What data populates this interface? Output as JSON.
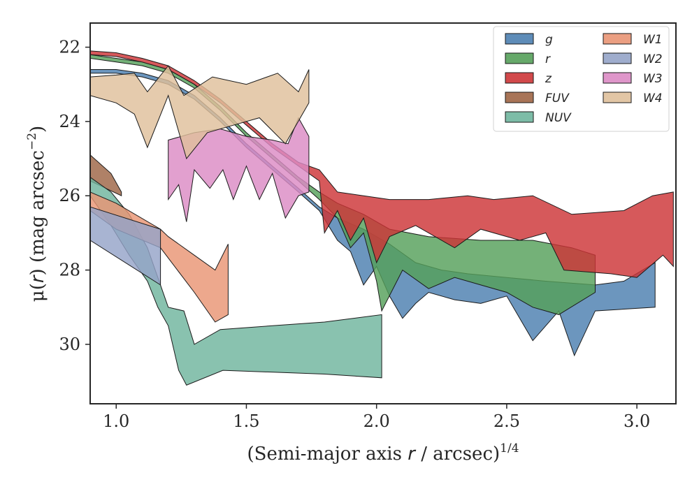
{
  "chart_data": {
    "type": "area",
    "title": "",
    "xlabel": "(Semi-major axis r / arcsec)^1/4",
    "xlabel_parts": [
      "(Semi-major axis ",
      "r",
      " / arcsec)",
      "1/4"
    ],
    "ylabel": "μ(r) (mag arcsec^−2)",
    "ylabel_parts": [
      "μ(",
      "r",
      ") (mag arcsec",
      "−2",
      ")"
    ],
    "xlim": [
      0.9,
      3.15
    ],
    "ylim": [
      31.6,
      21.35
    ],
    "y_inverted": true,
    "xticks": [
      1.0,
      1.5,
      2.0,
      2.5,
      3.0
    ],
    "xtick_labels": [
      "1.0",
      "1.5",
      "2.0",
      "2.5",
      "3.0"
    ],
    "yticks": [
      22,
      24,
      26,
      28,
      30
    ],
    "ytick_labels": [
      "22",
      "24",
      "26",
      "28",
      "30"
    ],
    "grid": false,
    "legend_position": "top-right",
    "legend_columns": 2,
    "series": [
      {
        "name": "g",
        "color": "#4c7fb0",
        "upper": [
          [
            0.9,
            22.6
          ],
          [
            1.0,
            22.6
          ],
          [
            1.1,
            22.7
          ],
          [
            1.2,
            22.9
          ],
          [
            1.3,
            23.3
          ],
          [
            1.4,
            23.9
          ],
          [
            1.5,
            24.6
          ],
          [
            1.6,
            25.2
          ],
          [
            1.7,
            25.8
          ],
          [
            1.78,
            26.3
          ],
          [
            1.85,
            26.6
          ],
          [
            1.95,
            26.9
          ],
          [
            2.05,
            27.3
          ],
          [
            2.15,
            27.8
          ],
          [
            2.25,
            28.0
          ],
          [
            2.35,
            28.1
          ],
          [
            2.5,
            28.2
          ],
          [
            2.65,
            28.3
          ],
          [
            2.84,
            28.4
          ],
          [
            2.95,
            28.3
          ],
          [
            3.07,
            27.8
          ]
        ],
        "lower": [
          [
            0.9,
            22.7
          ],
          [
            1.0,
            22.7
          ],
          [
            1.1,
            22.8
          ],
          [
            1.2,
            23.0
          ],
          [
            1.3,
            23.4
          ],
          [
            1.4,
            24.0
          ],
          [
            1.5,
            24.7
          ],
          [
            1.6,
            25.3
          ],
          [
            1.7,
            25.9
          ],
          [
            1.78,
            26.4
          ],
          [
            1.85,
            27.2
          ],
          [
            1.9,
            27.5
          ],
          [
            1.95,
            28.4
          ],
          [
            2.0,
            27.9
          ],
          [
            2.05,
            28.7
          ],
          [
            2.1,
            29.3
          ],
          [
            2.15,
            28.9
          ],
          [
            2.2,
            28.6
          ],
          [
            2.3,
            28.8
          ],
          [
            2.4,
            28.9
          ],
          [
            2.5,
            28.7
          ],
          [
            2.6,
            29.9
          ],
          [
            2.7,
            29.1
          ],
          [
            2.76,
            30.3
          ],
          [
            2.84,
            29.1
          ],
          [
            3.07,
            29.0
          ]
        ]
      },
      {
        "name": "r",
        "color": "#55a05a",
        "upper": [
          [
            0.9,
            22.2
          ],
          [
            1.0,
            22.3
          ],
          [
            1.1,
            22.4
          ],
          [
            1.2,
            22.6
          ],
          [
            1.3,
            23.0
          ],
          [
            1.4,
            23.6
          ],
          [
            1.5,
            24.3
          ],
          [
            1.6,
            24.9
          ],
          [
            1.7,
            25.5
          ],
          [
            1.78,
            25.9
          ],
          [
            1.85,
            26.2
          ],
          [
            1.95,
            26.5
          ],
          [
            2.05,
            26.9
          ],
          [
            2.2,
            27.1
          ],
          [
            2.4,
            27.2
          ],
          [
            2.6,
            27.2
          ],
          [
            2.75,
            27.4
          ],
          [
            2.84,
            27.6
          ]
        ],
        "lower": [
          [
            0.9,
            22.3
          ],
          [
            1.0,
            22.4
          ],
          [
            1.1,
            22.5
          ],
          [
            1.2,
            22.7
          ],
          [
            1.3,
            23.1
          ],
          [
            1.4,
            23.7
          ],
          [
            1.5,
            24.4
          ],
          [
            1.6,
            25.0
          ],
          [
            1.7,
            25.6
          ],
          [
            1.78,
            26.1
          ],
          [
            1.85,
            26.6
          ],
          [
            1.9,
            27.4
          ],
          [
            1.95,
            27.0
          ],
          [
            2.0,
            28.3
          ],
          [
            2.02,
            29.1
          ],
          [
            2.1,
            28.0
          ],
          [
            2.2,
            28.5
          ],
          [
            2.3,
            28.2
          ],
          [
            2.4,
            28.4
          ],
          [
            2.5,
            28.6
          ],
          [
            2.6,
            29.0
          ],
          [
            2.7,
            29.2
          ],
          [
            2.84,
            28.6
          ]
        ]
      },
      {
        "name": "z",
        "color": "#cd3537",
        "upper": [
          [
            0.9,
            22.1
          ],
          [
            1.0,
            22.15
          ],
          [
            1.1,
            22.3
          ],
          [
            1.2,
            22.5
          ],
          [
            1.3,
            22.9
          ],
          [
            1.4,
            23.4
          ],
          [
            1.5,
            24.0
          ],
          [
            1.6,
            24.6
          ],
          [
            1.7,
            25.1
          ],
          [
            1.78,
            25.3
          ],
          [
            1.85,
            25.9
          ],
          [
            1.95,
            26.0
          ],
          [
            2.05,
            26.1
          ],
          [
            2.2,
            26.1
          ],
          [
            2.35,
            26.0
          ],
          [
            2.45,
            26.1
          ],
          [
            2.6,
            26.0
          ],
          [
            2.75,
            26.5
          ],
          [
            2.95,
            26.4
          ],
          [
            3.06,
            26.0
          ],
          [
            3.14,
            25.9
          ]
        ],
        "lower": [
          [
            0.9,
            22.2
          ],
          [
            1.0,
            22.25
          ],
          [
            1.1,
            22.4
          ],
          [
            1.2,
            22.6
          ],
          [
            1.3,
            23.0
          ],
          [
            1.4,
            23.5
          ],
          [
            1.5,
            24.1
          ],
          [
            1.6,
            24.7
          ],
          [
            1.7,
            25.2
          ],
          [
            1.78,
            25.6
          ],
          [
            1.8,
            27.0
          ],
          [
            1.85,
            26.4
          ],
          [
            1.9,
            27.2
          ],
          [
            1.95,
            26.6
          ],
          [
            2.0,
            27.8
          ],
          [
            2.05,
            27.1
          ],
          [
            2.15,
            26.8
          ],
          [
            2.3,
            27.4
          ],
          [
            2.4,
            26.9
          ],
          [
            2.55,
            27.2
          ],
          [
            2.65,
            27.0
          ],
          [
            2.72,
            28.0
          ],
          [
            2.9,
            28.1
          ],
          [
            3.0,
            28.2
          ],
          [
            3.1,
            27.6
          ],
          [
            3.14,
            27.9
          ]
        ]
      },
      {
        "name": "FUV",
        "color": "#9e6545",
        "upper": [
          [
            0.9,
            24.9
          ],
          [
            0.98,
            25.4
          ],
          [
            1.02,
            25.9
          ]
        ],
        "lower": [
          [
            0.9,
            25.6
          ],
          [
            0.96,
            25.8
          ],
          [
            1.02,
            26.0
          ]
        ]
      },
      {
        "name": "NUV",
        "color": "#6fb59d",
        "upper": [
          [
            0.9,
            25.5
          ],
          [
            0.98,
            25.9
          ],
          [
            1.05,
            26.5
          ],
          [
            1.12,
            27.4
          ],
          [
            1.16,
            28.2
          ],
          [
            1.2,
            29.0
          ],
          [
            1.26,
            29.1
          ],
          [
            1.3,
            30.0
          ],
          [
            1.4,
            29.6
          ],
          [
            1.6,
            29.5
          ],
          [
            1.8,
            29.4
          ],
          [
            2.02,
            29.2
          ]
        ],
        "lower": [
          [
            0.9,
            26.0
          ],
          [
            0.98,
            26.8
          ],
          [
            1.05,
            27.6
          ],
          [
            1.12,
            28.3
          ],
          [
            1.16,
            29.0
          ],
          [
            1.2,
            29.5
          ],
          [
            1.24,
            30.7
          ],
          [
            1.27,
            31.1
          ],
          [
            1.41,
            30.7
          ],
          [
            1.8,
            30.8
          ],
          [
            2.02,
            30.9
          ]
        ]
      },
      {
        "name": "W1",
        "color": "#e99574",
        "upper": [
          [
            0.9,
            25.9
          ],
          [
            1.0,
            26.2
          ],
          [
            1.17,
            26.9
          ],
          [
            1.2,
            27.1
          ],
          [
            1.3,
            27.6
          ],
          [
            1.38,
            28.0
          ],
          [
            1.43,
            27.3
          ]
        ],
        "lower": [
          [
            0.9,
            26.4
          ],
          [
            1.0,
            26.9
          ],
          [
            1.17,
            27.4
          ],
          [
            1.3,
            28.6
          ],
          [
            1.38,
            29.4
          ],
          [
            1.43,
            29.2
          ]
        ]
      },
      {
        "name": "W2",
        "color": "#95a4c8",
        "upper": [
          [
            0.9,
            26.3
          ],
          [
            1.17,
            26.9
          ]
        ],
        "lower": [
          [
            0.9,
            27.2
          ],
          [
            1.17,
            28.4
          ]
        ]
      },
      {
        "name": "W3",
        "color": "#dc8bc4",
        "upper": [
          [
            1.2,
            24.5
          ],
          [
            1.3,
            24.3
          ],
          [
            1.4,
            24.2
          ],
          [
            1.5,
            24.4
          ],
          [
            1.6,
            24.5
          ],
          [
            1.66,
            24.6
          ],
          [
            1.7,
            23.9
          ],
          [
            1.74,
            24.4
          ]
        ],
        "lower": [
          [
            1.2,
            26.1
          ],
          [
            1.24,
            25.7
          ],
          [
            1.27,
            26.7
          ],
          [
            1.3,
            25.3
          ],
          [
            1.36,
            25.8
          ],
          [
            1.41,
            25.3
          ],
          [
            1.45,
            26.1
          ],
          [
            1.5,
            25.2
          ],
          [
            1.55,
            26.1
          ],
          [
            1.6,
            25.4
          ],
          [
            1.65,
            26.6
          ],
          [
            1.7,
            26.0
          ],
          [
            1.74,
            25.9
          ]
        ]
      },
      {
        "name": "W4",
        "color": "#dfc09b",
        "upper": [
          [
            0.9,
            22.8
          ],
          [
            1.0,
            22.75
          ],
          [
            1.07,
            22.7
          ],
          [
            1.12,
            23.2
          ],
          [
            1.2,
            22.5
          ],
          [
            1.26,
            23.3
          ],
          [
            1.37,
            22.8
          ],
          [
            1.5,
            23.0
          ],
          [
            1.62,
            22.7
          ],
          [
            1.7,
            23.2
          ],
          [
            1.74,
            22.6
          ]
        ],
        "lower": [
          [
            0.9,
            23.3
          ],
          [
            1.0,
            23.5
          ],
          [
            1.07,
            23.8
          ],
          [
            1.12,
            24.7
          ],
          [
            1.2,
            23.3
          ],
          [
            1.27,
            25.0
          ],
          [
            1.35,
            24.3
          ],
          [
            1.45,
            24.1
          ],
          [
            1.55,
            23.9
          ],
          [
            1.65,
            24.6
          ],
          [
            1.74,
            23.5
          ]
        ]
      }
    ]
  }
}
